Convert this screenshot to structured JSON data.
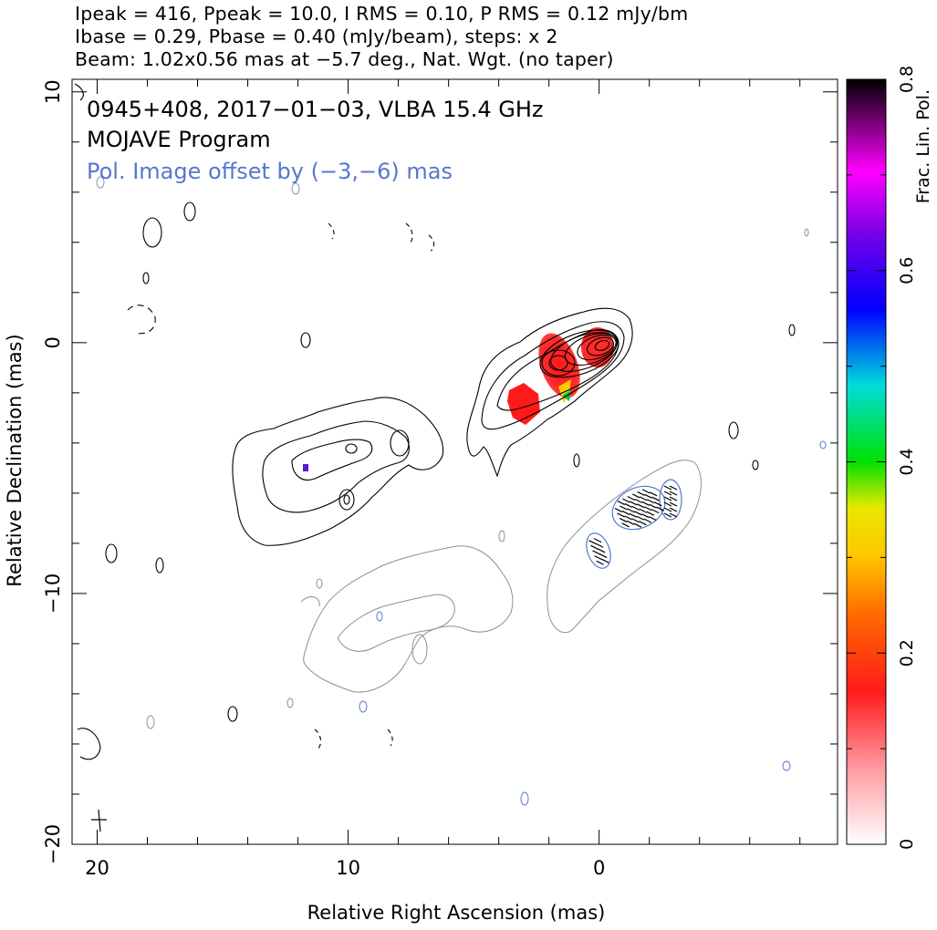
{
  "header": {
    "line1": "Ipeak = 416, Ppeak = 10.0, I RMS = 0.10, P RMS = 0.12 mJy/bm",
    "line2": "Ibase = 0.29, Pbase = 0.40 (mJy/beam), steps: x 2",
    "line3": "Beam: 1.02x0.56 mas at −5.7 deg., Nat. Wgt. (no taper)"
  },
  "plot": {
    "source_line": "0945+408, 2017−01−03, VLBA 15.4 GHz",
    "program_line": "MOJAVE Program",
    "pol_offset_line": "Pol. Image offset by (−3,−6) mas",
    "xlabel": "Relative Right Ascension (mas)",
    "ylabel": "Relative Declination (mas)",
    "colorbar_label": "Frac. Lin. Pol.",
    "colors": {
      "stokes_i_contour": "#000000",
      "pol_contour": "#8a8f9c",
      "pol_highlight": "#5577cc",
      "offset_text": "#5577cc"
    }
  },
  "chart_data": {
    "type": "contour",
    "xlim": [
      21,
      -9.5
    ],
    "ylim": [
      -20,
      10.5
    ],
    "x_ticks": [
      {
        "value": 20,
        "label": "20"
      },
      {
        "value": 10,
        "label": "10"
      },
      {
        "value": 0,
        "label": "0"
      }
    ],
    "y_ticks": [
      {
        "value": 10,
        "label": "10"
      },
      {
        "value": 0,
        "label": "0"
      },
      {
        "value": -10,
        "label": "−10"
      },
      {
        "value": -20,
        "label": "−20"
      }
    ],
    "colorbar": {
      "range": [
        0,
        0.8
      ],
      "ticks": [
        {
          "value": 0,
          "label": "0"
        },
        {
          "value": 0.2,
          "label": "0.2"
        },
        {
          "value": 0.4,
          "label": "0.4"
        },
        {
          "value": 0.6,
          "label": "0.6"
        },
        {
          "value": 0.8,
          "label": "0.8"
        }
      ]
    },
    "beam": {
      "major_mas": 1.02,
      "minor_mas": 0.56,
      "pa_deg": -5.7
    }
  }
}
